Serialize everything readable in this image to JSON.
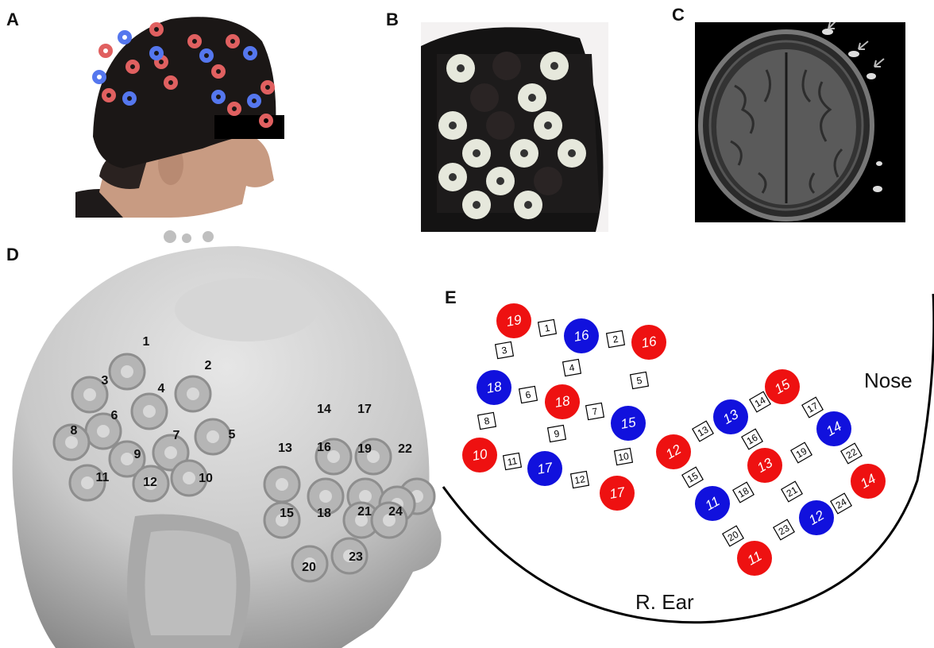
{
  "panels": {
    "a": {
      "letter": "A"
    },
    "b": {
      "letter": "B"
    },
    "c": {
      "letter": "C"
    },
    "d": {
      "letter": "D",
      "optode_labels": [
        "1",
        "2",
        "3",
        "4",
        "5",
        "6",
        "7",
        "8",
        "9",
        "10",
        "11",
        "12",
        "13",
        "14",
        "15",
        "16",
        "17",
        "18",
        "19",
        "20",
        "21",
        "22",
        "23",
        "24"
      ]
    },
    "e": {
      "letter": "E",
      "nose_label": "Nose",
      "ear_label": "R. Ear",
      "colors": {
        "source": "#ee1111",
        "detector": "#1111dd"
      },
      "left_array": {
        "sources": [
          "19",
          "16",
          "18",
          "10",
          "17"
        ],
        "detectors": [
          "16",
          "18",
          "15",
          "17"
        ],
        "channels": [
          "1",
          "2",
          "3",
          "4",
          "5",
          "6",
          "7",
          "8",
          "9",
          "10",
          "11",
          "12"
        ]
      },
      "right_array": {
        "sources": [
          "15",
          "12",
          "13",
          "14",
          "11"
        ],
        "detectors": [
          "13",
          "14",
          "11",
          "12"
        ],
        "channels": [
          "13",
          "14",
          "15",
          "16",
          "17",
          "18",
          "19",
          "20",
          "21",
          "22",
          "23",
          "24"
        ]
      }
    }
  }
}
